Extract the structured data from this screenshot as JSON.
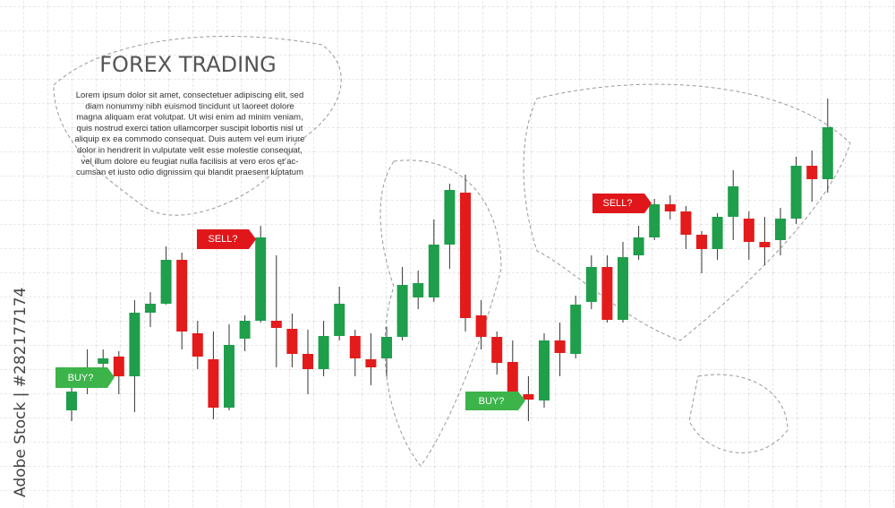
{
  "chart_data": {
    "type": "candlestick",
    "title": "FOREX TRADING",
    "text": [
      "Lorem ipsum dolor sit amet, consectetuer adipiscing elit, sed",
      "diam nonummy nibh euismod tincidunt ut laoreet dolore",
      "magna aliquam erat volutpat. Ut wisi enim ad minim veniam,",
      "quis nostrud exerci tation ullamcorper suscipit lobortis nisl ut",
      "aliquip ex ea commodo consequat. Duis autem vel eum iriure",
      "dolor in hendrerit in vulputate velit esse molestie consequat,",
      "vel illum dolore eu feugiat nulla facilisis at vero eros et ac-",
      "cumsan et iusto odio dignissim qui blandit praesent luptatum"
    ],
    "annotations": [
      "BUY?",
      "SELL?",
      "BUY?",
      "SELL?"
    ],
    "open": [
      109,
      153,
      161,
      169,
      147,
      218,
      228,
      277,
      195,
      166,
      112,
      189,
      209,
      209,
      200,
      172,
      155,
      192,
      192,
      166,
      167,
      191,
      235,
      235,
      294,
      352,
      215,
      191,
      163,
      127,
      120,
      187,
      172,
      230,
      269,
      210,
      282,
      302,
      339,
      331,
      305,
      289,
      325,
      323,
      297,
      299,
      323,
      382,
      367
    ],
    "high": [
      142,
      177,
      177,
      175,
      232,
      241,
      292,
      285,
      209,
      197,
      205,
      215,
      315,
      282,
      217,
      199,
      209,
      247,
      199,
      195,
      202,
      269,
      265,
      322,
      362,
      372,
      232,
      197,
      187,
      147,
      195,
      207,
      237,
      282,
      282,
      297,
      315,
      345,
      349,
      337,
      309,
      329,
      377,
      331,
      325,
      335,
      392,
      399,
      457
    ],
    "low": [
      97,
      127,
      149,
      127,
      107,
      202,
      227,
      177,
      155,
      99,
      109,
      175,
      207,
      157,
      157,
      127,
      147,
      187,
      147,
      137,
      147,
      187,
      222,
      230,
      267,
      197,
      177,
      149,
      117,
      97,
      112,
      147,
      167,
      222,
      207,
      207,
      277,
      299,
      322,
      289,
      262,
      277,
      299,
      277,
      271,
      282,
      317,
      342,
      352
    ],
    "close": [
      130,
      157,
      167,
      147,
      218,
      228,
      277,
      197,
      169,
      112,
      182,
      209,
      302,
      201,
      172,
      155,
      192,
      228,
      167,
      157,
      191,
      249,
      251,
      294,
      355,
      212,
      191,
      162,
      129,
      121,
      187,
      173,
      227,
      269,
      210,
      280,
      302,
      339,
      331,
      305,
      289,
      325,
      359,
      297,
      291,
      323,
      382,
      367,
      425
    ],
    "up_color": "#1f9e4b",
    "down_color": "#e31b1b",
    "ylim": [
      0,
      567
    ]
  },
  "watermark": "Adobe Stock | #282177174"
}
